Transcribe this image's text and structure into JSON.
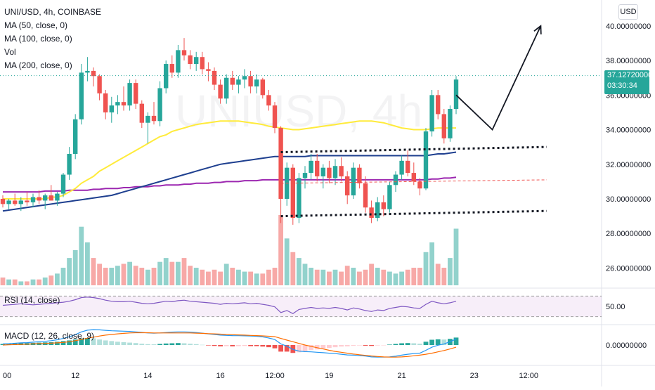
{
  "legend": {
    "symbol": "UNI/USD, 4h, COINBASE",
    "ma50": "MA (50, close, 0)",
    "ma100": "MA (100, close, 0)",
    "vol": "Vol",
    "ma200": "MA (200, close, 0)"
  },
  "currency_button": "USD",
  "last_price": {
    "value": "37.12720000",
    "countdown": "03:30:34"
  },
  "watermark": "UNIUSD, 4h",
  "rsi_label": "RSI (14, close)",
  "macd_label": "MACD (12, 26, close, 9)",
  "chart_data": [
    {
      "type": "candlestick",
      "title": "UNI/USD, 4h, COINBASE",
      "y_ticks": [
        "26.00000000",
        "28.00000000",
        "30.00000000",
        "32.00000000",
        "34.00000000",
        "36.00000000",
        "38.00000000",
        "40.00000000"
      ],
      "ylim": [
        25,
        41.5
      ],
      "x_ticks": [
        {
          "label": "00",
          "i": 0
        },
        {
          "label": "12",
          "i": 12
        },
        {
          "label": "14",
          "i": 24
        },
        {
          "label": "16",
          "i": 36
        },
        {
          "label": "12:00",
          "i": 45
        },
        {
          "label": "19",
          "i": 54
        },
        {
          "label": "21",
          "i": 66
        },
        {
          "label": "23",
          "i": 78
        },
        {
          "label": "12:00",
          "i": 87
        }
      ],
      "ohlc": [
        [
          30.0,
          30.2,
          29.5,
          29.7
        ],
        [
          29.7,
          30.0,
          29.4,
          29.9
        ],
        [
          29.9,
          30.3,
          29.6,
          29.7
        ],
        [
          29.7,
          30.1,
          29.3,
          29.9
        ],
        [
          29.9,
          30.4,
          29.6,
          29.8
        ],
        [
          29.8,
          30.3,
          29.5,
          30.1
        ],
        [
          30.1,
          30.5,
          29.7,
          29.9
        ],
        [
          29.9,
          30.3,
          29.4,
          30.2
        ],
        [
          30.2,
          30.8,
          29.9,
          29.9
        ],
        [
          29.9,
          30.4,
          29.6,
          30.3
        ],
        [
          30.3,
          31.5,
          30.1,
          31.4
        ],
        [
          31.4,
          33.0,
          31.1,
          32.6
        ],
        [
          32.6,
          34.9,
          32.3,
          34.6
        ],
        [
          34.6,
          37.8,
          34.3,
          37.3
        ],
        [
          37.3,
          38.2,
          36.8,
          37.4
        ],
        [
          37.4,
          37.6,
          36.5,
          37.1
        ],
        [
          37.1,
          37.2,
          35.7,
          36.1
        ],
        [
          36.1,
          36.3,
          34.6,
          35.0
        ],
        [
          35.0,
          35.9,
          34.4,
          35.4
        ],
        [
          35.4,
          36.0,
          34.9,
          35.6
        ],
        [
          35.6,
          36.5,
          35.1,
          35.4
        ],
        [
          35.4,
          36.9,
          35.1,
          36.7
        ],
        [
          36.7,
          36.9,
          35.2,
          35.5
        ],
        [
          35.5,
          35.7,
          34.1,
          34.4
        ],
        [
          34.4,
          35.0,
          33.2,
          34.8
        ],
        [
          34.8,
          35.6,
          34.3,
          34.5
        ],
        [
          34.5,
          36.8,
          34.2,
          36.4
        ],
        [
          36.4,
          38.0,
          36.1,
          37.8
        ],
        [
          37.8,
          38.3,
          37.0,
          37.3
        ],
        [
          37.3,
          38.9,
          37.0,
          38.6
        ],
        [
          38.6,
          39.3,
          38.0,
          38.3
        ],
        [
          38.3,
          38.6,
          37.5,
          37.8
        ],
        [
          37.8,
          38.5,
          37.4,
          38.2
        ],
        [
          38.2,
          38.5,
          37.2,
          37.5
        ],
        [
          37.5,
          37.9,
          36.8,
          37.4
        ],
        [
          37.4,
          37.6,
          36.3,
          36.6
        ],
        [
          36.6,
          36.9,
          35.5,
          35.8
        ],
        [
          35.8,
          37.2,
          35.5,
          37.0
        ],
        [
          37.0,
          37.4,
          36.3,
          36.6
        ],
        [
          36.6,
          37.1,
          36.1,
          36.9
        ],
        [
          36.9,
          37.5,
          36.4,
          37.1
        ],
        [
          37.1,
          37.4,
          36.1,
          36.5
        ],
        [
          36.5,
          37.2,
          36.1,
          36.9
        ],
        [
          36.9,
          37.0,
          35.8,
          36.0
        ],
        [
          36.0,
          36.3,
          35.1,
          35.4
        ],
        [
          35.4,
          35.6,
          33.8,
          34.1
        ],
        [
          34.1,
          34.2,
          28.6,
          30.0
        ],
        [
          30.0,
          32.1,
          29.6,
          31.8
        ],
        [
          31.8,
          32.0,
          28.5,
          28.9
        ],
        [
          28.9,
          31.5,
          28.6,
          31.2
        ],
        [
          31.2,
          31.9,
          30.6,
          31.5
        ],
        [
          31.5,
          32.6,
          31.1,
          32.2
        ],
        [
          32.2,
          32.6,
          31.0,
          31.3
        ],
        [
          31.3,
          32.0,
          30.6,
          31.8
        ],
        [
          31.8,
          32.2,
          30.9,
          31.2
        ],
        [
          31.2,
          32.3,
          30.8,
          31.9
        ],
        [
          31.9,
          32.4,
          31.0,
          31.3
        ],
        [
          31.3,
          31.6,
          29.7,
          30.2
        ],
        [
          30.2,
          32.1,
          30.0,
          31.8
        ],
        [
          31.8,
          32.0,
          30.6,
          30.9
        ],
        [
          30.9,
          31.3,
          29.2,
          29.5
        ],
        [
          29.5,
          29.9,
          28.6,
          28.9
        ],
        [
          28.9,
          30.1,
          28.7,
          29.8
        ],
        [
          29.8,
          30.2,
          29.0,
          29.4
        ],
        [
          29.4,
          31.0,
          29.2,
          30.8
        ],
        [
          30.8,
          31.6,
          30.4,
          31.4
        ],
        [
          31.4,
          32.5,
          31.1,
          32.2
        ],
        [
          32.2,
          32.8,
          31.3,
          31.5
        ],
        [
          31.5,
          32.1,
          30.8,
          31.0
        ],
        [
          31.0,
          31.2,
          30.2,
          30.6
        ],
        [
          30.6,
          34.1,
          30.5,
          33.9
        ],
        [
          33.9,
          36.3,
          33.6,
          36.0
        ],
        [
          36.0,
          36.3,
          34.6,
          34.9
        ],
        [
          34.9,
          35.2,
          33.2,
          33.5
        ],
        [
          33.5,
          35.4,
          33.3,
          35.2
        ],
        [
          35.2,
          37.1,
          34.9,
          36.9
        ]
      ],
      "volume": [
        4,
        3,
        3,
        2,
        2,
        3,
        3,
        4,
        5,
        6,
        9,
        14,
        18,
        30,
        22,
        14,
        11,
        9,
        9,
        10,
        11,
        12,
        10,
        9,
        8,
        9,
        12,
        14,
        12,
        12,
        14,
        10,
        9,
        8,
        7,
        8,
        7,
        11,
        9,
        8,
        7,
        7,
        6,
        6,
        8,
        9,
        36,
        24,
        17,
        14,
        11,
        9,
        8,
        8,
        7,
        8,
        7,
        10,
        9,
        7,
        8,
        11,
        9,
        8,
        7,
        6,
        7,
        8,
        9,
        9,
        17,
        22,
        11,
        9,
        14,
        29
      ],
      "ma50": [
        30.0,
        30.0,
        30.0,
        30.0,
        30.0,
        30.0,
        30.0,
        30.0,
        30.1,
        30.1,
        30.2,
        30.4,
        30.6,
        30.9,
        31.1,
        31.3,
        31.6,
        31.8,
        32.0,
        32.2,
        32.4,
        32.6,
        32.8,
        33.0,
        33.2,
        33.4,
        33.6,
        33.7,
        33.9,
        34.0,
        34.1,
        34.2,
        34.3,
        34.35,
        34.4,
        34.45,
        34.5,
        34.5,
        34.5,
        34.5,
        34.45,
        34.4,
        34.35,
        34.3,
        34.2,
        34.15,
        34.1,
        34.05,
        34.0,
        34.0,
        34.05,
        34.1,
        34.15,
        34.2,
        34.25,
        34.3,
        34.35,
        34.4,
        34.45,
        34.5,
        34.5,
        34.5,
        34.45,
        34.4,
        34.3,
        34.2,
        34.1,
        34.05,
        34.0,
        34.0,
        34.0,
        34.05,
        34.1,
        34.1,
        34.1,
        34.1
      ],
      "ma100": [
        29.3,
        29.35,
        29.4,
        29.45,
        29.5,
        29.55,
        29.6,
        29.65,
        29.7,
        29.75,
        29.8,
        29.85,
        29.9,
        29.95,
        30.0,
        30.05,
        30.1,
        30.15,
        30.2,
        30.3,
        30.4,
        30.5,
        30.6,
        30.7,
        30.8,
        30.9,
        31.0,
        31.1,
        31.2,
        31.3,
        31.4,
        31.5,
        31.6,
        31.7,
        31.8,
        31.9,
        32.0,
        32.05,
        32.1,
        32.15,
        32.2,
        32.25,
        32.3,
        32.35,
        32.4,
        32.45,
        32.45,
        32.45,
        32.45,
        32.45,
        32.45,
        32.5,
        32.5,
        32.5,
        32.5,
        32.5,
        32.5,
        32.5,
        32.5,
        32.5,
        32.5,
        32.5,
        32.5,
        32.5,
        32.5,
        32.5,
        32.5,
        32.5,
        32.5,
        32.5,
        32.5,
        32.55,
        32.6,
        32.6,
        32.65,
        32.7
      ],
      "ma200": [
        30.4,
        30.4,
        30.4,
        30.4,
        30.4,
        30.4,
        30.4,
        30.45,
        30.45,
        30.45,
        30.45,
        30.5,
        30.5,
        30.5,
        30.5,
        30.55,
        30.55,
        30.6,
        30.6,
        30.6,
        30.65,
        30.65,
        30.7,
        30.7,
        30.7,
        30.75,
        30.75,
        30.8,
        30.8,
        30.8,
        30.85,
        30.85,
        30.9,
        30.9,
        30.9,
        30.95,
        30.95,
        31.0,
        31.0,
        31.0,
        31.05,
        31.05,
        31.05,
        31.1,
        31.1,
        31.1,
        31.1,
        31.1,
        31.1,
        31.1,
        31.1,
        31.1,
        31.1,
        31.1,
        31.1,
        31.1,
        31.1,
        31.1,
        31.1,
        31.1,
        31.1,
        31.1,
        31.1,
        31.1,
        31.1,
        31.1,
        31.1,
        31.1,
        31.1,
        31.1,
        31.1,
        31.15,
        31.15,
        31.2,
        31.2,
        31.25
      ],
      "drawings": {
        "channel_top": [
          [
            46,
            32.7
          ],
          [
            90,
            33.0
          ]
        ],
        "channel_bottom": [
          [
            46,
            29.0
          ],
          [
            90,
            29.3
          ]
        ],
        "channel_mid": [
          [
            46,
            30.9
          ],
          [
            90,
            31.1
          ]
        ],
        "arrow": [
          [
            75,
            36.0
          ],
          [
            81,
            34.0
          ],
          [
            89,
            40.0
          ]
        ]
      },
      "last_price": 37.1272
    },
    {
      "type": "line",
      "title": "RSI (14, close)",
      "y_ticks": [
        "50.00"
      ],
      "band": [
        30,
        70
      ],
      "ylim": [
        20,
        80
      ],
      "values": [
        52,
        53,
        54,
        55,
        54,
        53,
        54,
        55,
        56,
        57,
        58,
        60,
        63,
        67,
        68,
        67,
        65,
        62,
        60,
        59,
        59,
        60,
        58,
        56,
        55,
        56,
        58,
        60,
        59,
        61,
        62,
        60,
        59,
        58,
        57,
        56,
        54,
        56,
        55,
        56,
        57,
        55,
        56,
        54,
        52,
        49,
        38,
        42,
        36,
        44,
        46,
        48,
        46,
        47,
        46,
        48,
        46,
        43,
        47,
        45,
        42,
        40,
        43,
        42,
        46,
        48,
        50,
        49,
        47,
        46,
        54,
        60,
        57,
        55,
        57,
        60
      ]
    },
    {
      "type": "bar",
      "title": "MACD (12, 26, close, 9)",
      "y_ticks": [
        "0.00000000"
      ],
      "ylim": [
        -1.6,
        1.6
      ],
      "hist": [
        0.1,
        0.12,
        0.14,
        0.16,
        0.18,
        0.2,
        0.22,
        0.24,
        0.26,
        0.3,
        0.36,
        0.42,
        0.5,
        0.6,
        0.64,
        0.6,
        0.5,
        0.42,
        0.36,
        0.3,
        0.26,
        0.22,
        0.18,
        0.12,
        0.08,
        0.06,
        0.1,
        0.14,
        0.16,
        0.18,
        0.16,
        0.12,
        0.08,
        0.02,
        -0.04,
        -0.08,
        -0.12,
        -0.1,
        -0.12,
        -0.1,
        -0.08,
        -0.1,
        -0.1,
        -0.14,
        -0.2,
        -0.3,
        -0.6,
        -0.6,
        -0.72,
        -0.66,
        -0.56,
        -0.46,
        -0.4,
        -0.32,
        -0.26,
        -0.2,
        -0.14,
        -0.12,
        -0.06,
        -0.04,
        -0.06,
        -0.08,
        -0.04,
        -0.02,
        0.04,
        0.1,
        0.16,
        0.18,
        0.16,
        0.12,
        0.3,
        0.48,
        0.52,
        0.5,
        0.56,
        0.68
      ],
      "macd": [
        0.1,
        0.12,
        0.16,
        0.2,
        0.22,
        0.26,
        0.3,
        0.34,
        0.4,
        0.48,
        0.6,
        0.75,
        0.95,
        1.2,
        1.35,
        1.4,
        1.38,
        1.34,
        1.3,
        1.28,
        1.26,
        1.24,
        1.2,
        1.15,
        1.1,
        1.08,
        1.1,
        1.14,
        1.18,
        1.2,
        1.2,
        1.18,
        1.14,
        1.08,
        1.02,
        0.96,
        0.9,
        0.88,
        0.86,
        0.85,
        0.84,
        0.82,
        0.8,
        0.74,
        0.64,
        0.5,
        0.1,
        -0.1,
        -0.4,
        -0.55,
        -0.6,
        -0.62,
        -0.66,
        -0.7,
        -0.74,
        -0.78,
        -0.84,
        -0.9,
        -0.92,
        -0.96,
        -1.0,
        -1.08,
        -1.1,
        -1.1,
        -1.08,
        -1.02,
        -0.92,
        -0.84,
        -0.78,
        -0.74,
        -0.48,
        -0.2,
        -0.02,
        0.1,
        0.3,
        0.55
      ],
      "signal": [
        0.0,
        0.02,
        0.04,
        0.06,
        0.08,
        0.1,
        0.12,
        0.14,
        0.17,
        0.2,
        0.24,
        0.3,
        0.4,
        0.5,
        0.62,
        0.72,
        0.82,
        0.9,
        0.96,
        1.02,
        1.06,
        1.1,
        1.12,
        1.12,
        1.12,
        1.1,
        1.1,
        1.1,
        1.1,
        1.1,
        1.1,
        1.1,
        1.08,
        1.06,
        1.04,
        1.02,
        0.99,
        0.96,
        0.94,
        0.92,
        0.9,
        0.88,
        0.86,
        0.83,
        0.8,
        0.76,
        0.6,
        0.45,
        0.3,
        0.15,
        0.0,
        -0.12,
        -0.24,
        -0.36,
        -0.48,
        -0.58,
        -0.66,
        -0.74,
        -0.82,
        -0.88,
        -0.94,
        -1.0,
        -1.04,
        -1.08,
        -1.1,
        -1.1,
        -1.08,
        -1.04,
        -0.98,
        -0.92,
        -0.84,
        -0.74,
        -0.62,
        -0.5,
        -0.36,
        -0.2
      ]
    }
  ]
}
